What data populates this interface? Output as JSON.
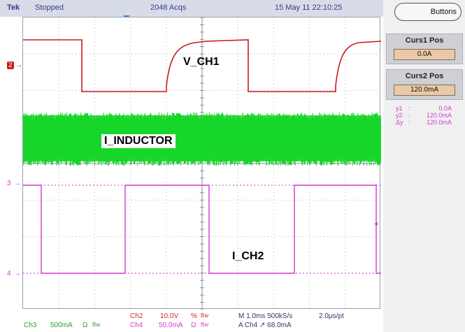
{
  "header": {
    "brand": "Tek",
    "status": "Stopped",
    "acquisitions": "2048 Acqs",
    "datetime": "15 May 11 22:10:25"
  },
  "colors": {
    "ch2_trace": "#cc1a1a",
    "ch3_trace": "#17d62a",
    "ch4_trace": "#d13ad1",
    "cursor_readout": "#d13ad1",
    "grid": "#b0b6be",
    "trigger_marker": "#1e90ff"
  },
  "markers": {
    "ch2": "2",
    "ch3": "3",
    "ch4": "4"
  },
  "signal_labels": {
    "v_ch1": "V_CH1",
    "i_inductor": "I_INDUCTOR",
    "i_ch2": "I_CH2"
  },
  "sidebar": {
    "buttons_label": "Buttons",
    "curs1": {
      "title": "Curs1 Pos",
      "value": "0.0A"
    },
    "curs2": {
      "title": "Curs2 Pos",
      "value": "120.0mA"
    },
    "readout": [
      {
        "key": "y1",
        "value": "0.0A"
      },
      {
        "key": "y2",
        "value": "120.0mA"
      },
      {
        "key": "Δy",
        "value": "120.0mA"
      }
    ]
  },
  "bottom": {
    "ch2_label": "Ch2",
    "ch2_scale": "10.0V",
    "ch2_coupling": "%",
    "ch2_bw": "Bw",
    "ch3_label": "Ch3",
    "ch3_scale": "500mA",
    "ch3_coupling": "Ω",
    "ch3_bw": "Bw",
    "ch4_label": "Ch4",
    "ch4_scale": "50.0mA",
    "ch4_coupling": "Ω",
    "ch4_bw": "Bw",
    "timebase": "M 1.0ms 500kS/s",
    "resolution": "2.0μs/pt",
    "trigger": "A  Ch4  ↗  68.0mA"
  }
}
